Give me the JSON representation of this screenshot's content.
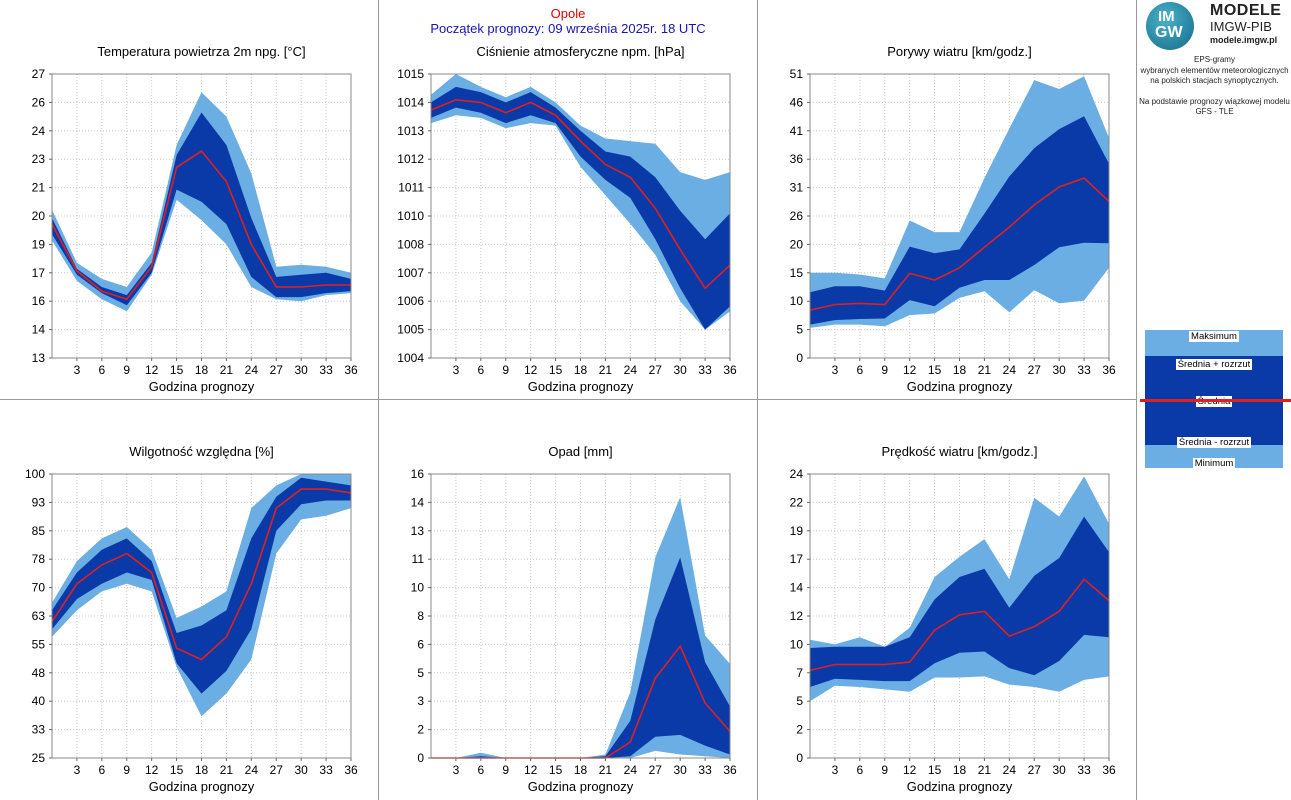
{
  "header": {
    "city": "Opole",
    "forecast_start": "Początek prognozy: 09 września 2025r. 18 UTC"
  },
  "logo": {
    "mark_top": "IM",
    "mark_bottom": "GW",
    "title": "MODELE",
    "subtitle": "IMGW-PIB",
    "url": "modele.imgw.pl"
  },
  "info": {
    "line1": "EPS-gramy",
    "line2": "wybranych elementów meteorologicznych",
    "line3": "na polskich stacjach  synoptycznych.",
    "line4": "Na podstawie prognozy wiązkowej modelu",
    "line5": "GFS - TLE"
  },
  "legend": {
    "max": "Maksimum",
    "mean_plus": "Średnia + rozrzut",
    "mean": "Średnia",
    "mean_minus": "Średnia - rozrzut",
    "min": "Minimum",
    "colors": {
      "outer": "#6aaee4",
      "inner": "#0a3aa8",
      "mean": "#e02020"
    }
  },
  "chart_data": [
    {
      "type": "area",
      "title": "Temperatura powietrza 2m npg. [°C]",
      "xlabel": "Godzina prognozy",
      "x": [
        0,
        3,
        6,
        9,
        12,
        15,
        18,
        21,
        24,
        27,
        30,
        33,
        36
      ],
      "xticks": [
        "3",
        "6",
        "9",
        "12",
        "15",
        "18",
        "21",
        "24",
        "27",
        "30",
        "33",
        "36"
      ],
      "yticks": [
        "13",
        "14",
        "16",
        "17",
        "19",
        "20",
        "21",
        "23",
        "24",
        "26",
        "27"
      ],
      "ylim": [
        13,
        27
      ],
      "series": [
        {
          "name": "Maksimum",
          "values": [
            20.3,
            17.7,
            16.9,
            16.5,
            18.2,
            23.5,
            26.1,
            24.9,
            22.1,
            17.5,
            17.6,
            17.5,
            17.2
          ]
        },
        {
          "name": "Średnia + rozrzut",
          "values": [
            19.9,
            17.4,
            16.5,
            16.1,
            17.7,
            23.0,
            25.1,
            23.5,
            19.9,
            17.0,
            17.1,
            17.2,
            16.9
          ]
        },
        {
          "name": "Średnia",
          "values": [
            19.6,
            17.3,
            16.3,
            15.9,
            17.5,
            22.4,
            23.2,
            21.7,
            18.6,
            16.5,
            16.5,
            16.6,
            16.6
          ]
        },
        {
          "name": "Średnia - rozrzut",
          "values": [
            19.1,
            17.1,
            16.2,
            15.6,
            17.2,
            21.3,
            20.7,
            19.6,
            17.0,
            16.0,
            16.0,
            16.2,
            16.3
          ]
        },
        {
          "name": "Minimum",
          "values": [
            18.8,
            16.8,
            15.9,
            15.3,
            17.1,
            20.8,
            19.8,
            18.6,
            16.5,
            15.9,
            15.8,
            16.1,
            16.2
          ]
        }
      ]
    },
    {
      "type": "area",
      "title": "Ciśnienie atmosferyczne npm. [hPa]",
      "xlabel": "Godzina prognozy",
      "x": [
        0,
        3,
        6,
        9,
        12,
        15,
        18,
        21,
        24,
        27,
        30,
        33,
        36
      ],
      "xticks": [
        "3",
        "6",
        "9",
        "12",
        "15",
        "18",
        "21",
        "24",
        "27",
        "30",
        "33",
        "36"
      ],
      "yticks": [
        "1004",
        "1005",
        "1006",
        "1007",
        "1008",
        "1010",
        "1011",
        "1012",
        "1013",
        "1014",
        "1015"
      ],
      "ylim": [
        1004,
        1015
      ],
      "series": [
        {
          "name": "Maksimum",
          "values": [
            1014.2,
            1015.0,
            1014.5,
            1014.1,
            1014.5,
            1013.9,
            1013.0,
            1012.5,
            1012.4,
            1012.3,
            1011.2,
            1010.9,
            1011.2
          ]
        },
        {
          "name": "Średnia + rozrzut",
          "values": [
            1013.9,
            1014.5,
            1014.3,
            1013.9,
            1014.3,
            1013.7,
            1012.8,
            1012.0,
            1011.8,
            1011.0,
            1009.7,
            1008.6,
            1009.6
          ]
        },
        {
          "name": "Średnia",
          "values": [
            1013.6,
            1014.0,
            1013.9,
            1013.5,
            1013.9,
            1013.4,
            1012.4,
            1011.5,
            1011.0,
            1009.8,
            1008.2,
            1006.7,
            1007.6
          ]
        },
        {
          "name": "Średnia - rozrzut",
          "values": [
            1013.3,
            1013.7,
            1013.5,
            1013.1,
            1013.4,
            1013.1,
            1011.8,
            1010.9,
            1010.2,
            1008.6,
            1006.7,
            1005.1,
            1006.0
          ]
        },
        {
          "name": "Minimum",
          "values": [
            1013.1,
            1013.4,
            1013.3,
            1012.9,
            1013.1,
            1013.0,
            1011.4,
            1010.3,
            1009.2,
            1008.0,
            1006.2,
            1005.1,
            1005.8
          ]
        }
      ]
    },
    {
      "type": "area",
      "title": "Porywy wiatru [km/godz.]",
      "xlabel": "Godzina prognozy",
      "x": [
        0,
        3,
        6,
        9,
        12,
        15,
        18,
        21,
        24,
        27,
        30,
        33,
        36
      ],
      "xticks": [
        "3",
        "6",
        "9",
        "12",
        "15",
        "18",
        "21",
        "24",
        "27",
        "30",
        "33",
        "36"
      ],
      "yticks": [
        "0",
        "5",
        "10",
        "15",
        "20",
        "26",
        "31",
        "36",
        "41",
        "46",
        "51"
      ],
      "ylim": [
        0,
        51
      ],
      "series": [
        {
          "name": "Maksimum",
          "values": [
            15.3,
            15.3,
            15.0,
            14.3,
            24.7,
            22.6,
            22.6,
            32.3,
            41.2,
            49.9,
            48.3,
            50.6,
            39.5
          ]
        },
        {
          "name": "Średnia + rozrzut",
          "values": [
            11.8,
            12.9,
            12.9,
            12.1,
            20.0,
            18.8,
            19.5,
            25.9,
            32.6,
            37.7,
            41.1,
            43.4,
            34.9
          ]
        },
        {
          "name": "Średnia",
          "values": [
            8.6,
            9.6,
            9.8,
            9.6,
            15.2,
            14.0,
            16.2,
            19.9,
            23.5,
            27.5,
            30.7,
            32.3,
            28.1
          ]
        },
        {
          "name": "Średnia - rozrzut",
          "values": [
            6.0,
            6.8,
            7.0,
            7.1,
            10.4,
            9.3,
            12.6,
            14.0,
            14.0,
            16.7,
            19.9,
            20.7,
            20.6
          ]
        },
        {
          "name": "Minimum",
          "values": [
            5.4,
            6.0,
            6.0,
            5.7,
            7.7,
            8.0,
            10.8,
            12.0,
            8.2,
            12.2,
            9.8,
            10.3,
            16.2
          ]
        }
      ]
    },
    {
      "type": "area",
      "title": "Wilgotność względna [%]",
      "xlabel": "Godzina prognozy",
      "x": [
        0,
        3,
        6,
        9,
        12,
        15,
        18,
        21,
        24,
        27,
        30,
        33,
        36
      ],
      "xticks": [
        "3",
        "6",
        "9",
        "12",
        "15",
        "18",
        "21",
        "24",
        "27",
        "30",
        "33",
        "36"
      ],
      "yticks": [
        "25",
        "33",
        "40",
        "48",
        "55",
        "63",
        "70",
        "78",
        "85",
        "93",
        "100"
      ],
      "ylim": [
        25,
        100
      ],
      "series": [
        {
          "name": "Maksimum",
          "values": [
            66,
            77,
            83,
            86,
            80,
            62,
            65,
            69,
            91,
            97,
            100,
            100,
            100
          ]
        },
        {
          "name": "Średnia + rozrzut",
          "values": [
            64,
            74,
            80,
            83,
            77,
            58,
            60,
            64,
            83,
            94,
            99,
            98,
            97
          ]
        },
        {
          "name": "Średnia",
          "values": [
            61,
            71,
            76,
            79,
            74,
            54,
            51,
            57,
            71,
            91,
            96,
            96,
            95
          ]
        },
        {
          "name": "Średnia - rozrzut",
          "values": [
            59,
            67,
            71,
            74,
            72,
            50,
            42,
            48,
            59,
            85,
            92,
            93,
            93
          ]
        },
        {
          "name": "Minimum",
          "values": [
            57,
            64,
            69,
            71,
            69,
            49,
            36,
            42,
            51,
            79,
            88,
            89,
            91
          ]
        }
      ]
    },
    {
      "type": "area",
      "title": "Opad [mm]",
      "xlabel": "Godzina prognozy",
      "x": [
        0,
        3,
        6,
        9,
        12,
        15,
        18,
        21,
        24,
        27,
        30,
        33,
        36
      ],
      "xticks": [
        "3",
        "6",
        "9",
        "12",
        "15",
        "18",
        "21",
        "24",
        "27",
        "30",
        "33",
        "36"
      ],
      "yticks": [
        "0",
        "2",
        "3",
        "5",
        "6",
        "8",
        "10",
        "11",
        "13",
        "14",
        "16"
      ],
      "ylim": [
        0,
        16
      ],
      "series": [
        {
          "name": "Maksimum",
          "values": [
            0,
            0,
            0.3,
            0,
            0,
            0,
            0,
            0.2,
            3.7,
            11.3,
            14.7,
            6.9,
            5.3
          ]
        },
        {
          "name": "Średnia + rozrzut",
          "values": [
            0,
            0,
            0.1,
            0,
            0,
            0,
            0,
            0.1,
            2.1,
            7.8,
            11.3,
            5.4,
            2.9
          ]
        },
        {
          "name": "Średnia",
          "values": [
            0,
            0,
            0,
            0,
            0,
            0,
            0,
            0,
            0.9,
            4.5,
            6.3,
            3.1,
            1.5
          ]
        },
        {
          "name": "Średnia - rozrzut",
          "values": [
            0,
            0,
            0,
            0,
            0,
            0,
            0,
            0,
            0.1,
            1.2,
            1.3,
            0.7,
            0.2
          ]
        },
        {
          "name": "Minimum",
          "values": [
            0,
            0,
            0,
            0,
            0,
            0,
            0,
            0,
            0,
            0.4,
            0.2,
            0.1,
            0
          ]
        }
      ]
    },
    {
      "type": "area",
      "title": "Prędkość wiatru [km/godz.]",
      "xlabel": "Godzina prognozy",
      "x": [
        0,
        3,
        6,
        9,
        12,
        15,
        18,
        21,
        24,
        27,
        30,
        33,
        36
      ],
      "xticks": [
        "3",
        "6",
        "9",
        "12",
        "15",
        "18",
        "21",
        "24",
        "27",
        "30",
        "33",
        "36"
      ],
      "yticks": [
        "0",
        "2",
        "5",
        "7",
        "10",
        "12",
        "14",
        "17",
        "19",
        "22",
        "24"
      ],
      "ylim": [
        0,
        24
      ],
      "series": [
        {
          "name": "Maksimum",
          "values": [
            10.0,
            9.6,
            10.2,
            9.4,
            11.0,
            15.3,
            17.0,
            18.5,
            15.1,
            22.0,
            20.4,
            23.8,
            19.8
          ]
        },
        {
          "name": "Średnia + rozrzut",
          "values": [
            9.3,
            9.4,
            9.4,
            9.4,
            10.2,
            13.4,
            15.3,
            16.0,
            12.7,
            15.4,
            16.9,
            20.4,
            17.4
          ]
        },
        {
          "name": "Średnia",
          "values": [
            7.4,
            7.9,
            7.9,
            7.9,
            8.1,
            10.8,
            12.1,
            12.4,
            10.3,
            11.1,
            12.4,
            15.1,
            13.3
          ]
        },
        {
          "name": "Średnia - rozrzut",
          "values": [
            6.0,
            6.7,
            6.6,
            6.5,
            6.5,
            8.0,
            8.9,
            9.0,
            7.6,
            7.0,
            8.2,
            10.4,
            10.2
          ]
        },
        {
          "name": "Minimum",
          "values": [
            4.8,
            6.1,
            6.0,
            5.8,
            5.6,
            6.8,
            6.8,
            6.9,
            6.2,
            6.0,
            5.6,
            6.6,
            6.9
          ]
        }
      ]
    }
  ]
}
